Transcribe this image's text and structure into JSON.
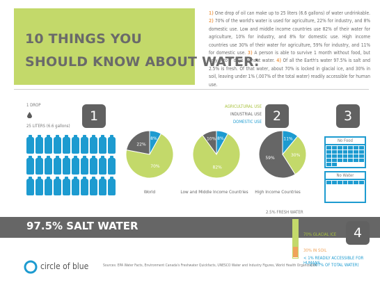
{
  "title": {
    "line1": "10 THINGS YOU",
    "line2": "SHOULD KNOW ABOUT WATER:"
  },
  "facts": [
    {
      "num": "1)",
      "text": " One drop of oil can make up to 25 liters (6.6 gallons) of water undrinkable. "
    },
    {
      "num": "2)",
      "text": " 70% of the world's water is used for agriculture, 22% for industry, and 8% domestic use. Low and middle income countries use 82% of their water for agriculture, 10% for industry, and 8% for domestic use. High income countries use 30% of their water for agriculture, 59% for industry, and 11% for domestic use. "
    },
    {
      "num": "3)",
      "text": " A person is able to survive 1 month without food, but only 5 to 7 days without water. "
    },
    {
      "num": "4)",
      "text": " Of all the Earth's water 97.5% is salt and 2.5% is fresh. Of that water, about 70% is locked in glacial ice, and 30% in soil, leaving under 1% (.007% of the total water) readily accessible for human use."
    }
  ],
  "section1": {
    "badge": "1",
    "drop_label": "1 DROP",
    "liters_label": "25 LITERS (6.6 gallons)",
    "bottle_count": 30
  },
  "section2": {
    "badge": "2",
    "legend": [
      "AGRICULTURAL USE",
      "INDUSTRIAL USE",
      "DOMESTIC USE"
    ],
    "pies": [
      {
        "caption": "World",
        "values": [
          70,
          22,
          8
        ],
        "labels": [
          "70%",
          "22%",
          "8%"
        ]
      },
      {
        "caption": "Low and Middle Income Countries",
        "values": [
          82,
          10,
          8
        ],
        "labels": [
          "82%",
          "10%",
          "8%"
        ]
      },
      {
        "caption": "High Income Countries",
        "values": [
          30,
          59,
          11
        ],
        "labels": [
          "30%",
          "59%",
          "11%"
        ]
      }
    ]
  },
  "section3": {
    "badge": "3",
    "no_food": "No Food",
    "no_water": "No Water",
    "no_food_days": 30,
    "no_water_days": 7
  },
  "section4": {
    "badge": "4",
    "salt": "97.5% SALT WATER",
    "fresh": "2.5% FRESH WATER",
    "glacial": "70% GLACIAL ICE",
    "soil": "30% IN SOIL",
    "accessible": "< 1% READILY ACCESSIBLE FOR HUMANS",
    "accessible_sub": "(.007% OF TOTAL WATER)"
  },
  "footer": {
    "logo": "circle of blue",
    "sources": "Sources: EPA Water Facts, Environment Canada's Freshwater Quickfacts, UNESCO Water and Industry Figures, World Health Organization"
  },
  "colors": {
    "agri": "#c3d96a",
    "ind": "#666666",
    "dom": "#1d9bd0",
    "orange": "#f0a35b"
  }
}
